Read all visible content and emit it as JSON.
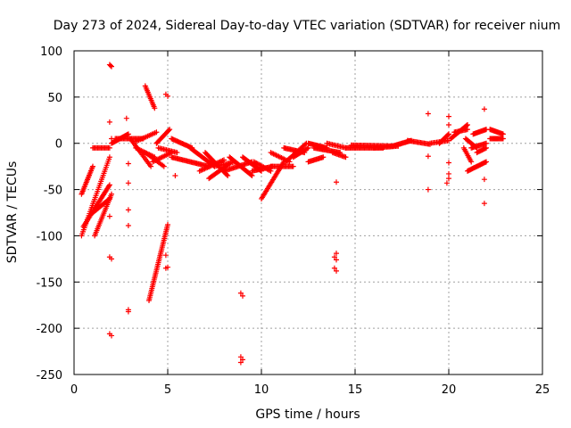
{
  "chart_data": {
    "type": "scatter",
    "title": "Day 273 of 2024, Sidereal Day-to-day VTEC variation (SDTVAR) for receiver nium",
    "xlabel": "GPS time / hours",
    "ylabel": "SDTVAR / TECUs",
    "xlim": [
      0,
      25
    ],
    "ylim": [
      -250,
      100
    ],
    "xticks": [
      0,
      5,
      10,
      15,
      20,
      25
    ],
    "yticks": [
      -250,
      -200,
      -150,
      -100,
      -50,
      0,
      50,
      100
    ],
    "xtick_labels": [
      "0",
      "5",
      "10",
      "15",
      "20",
      "25"
    ],
    "ytick_labels": [
      "-250",
      "-200",
      "-150",
      "-100",
      "-50",
      "0",
      "50",
      "100"
    ],
    "grid": true,
    "marker": "plus",
    "color": "#ff0000",
    "segments": [
      {
        "x0": 0.4,
        "y0": -55,
        "x1": 1.0,
        "y1": -25,
        "n": 20
      },
      {
        "x0": 0.4,
        "y0": -100,
        "x1": 1.9,
        "y1": -15,
        "n": 40
      },
      {
        "x0": 0.5,
        "y0": -90,
        "x1": 1.9,
        "y1": -45,
        "n": 35
      },
      {
        "x0": 1.1,
        "y0": -100,
        "x1": 2.0,
        "y1": -55,
        "n": 25
      },
      {
        "x0": 1.0,
        "y0": -75,
        "x1": 1.9,
        "y1": -60,
        "n": 20
      },
      {
        "x0": 1.0,
        "y0": -5,
        "x1": 1.9,
        "y1": -5,
        "n": 15
      },
      {
        "x0": 2.0,
        "y0": 0,
        "x1": 2.9,
        "y1": 10,
        "n": 20
      },
      {
        "x0": 2.2,
        "y0": 5,
        "x1": 3.7,
        "y1": 5,
        "n": 25
      },
      {
        "x0": 3.0,
        "y0": 5,
        "x1": 4.1,
        "y1": -25,
        "n": 20
      },
      {
        "x0": 3.3,
        "y0": -5,
        "x1": 4.3,
        "y1": -15,
        "n": 15
      },
      {
        "x0": 3.3,
        "y0": 2,
        "x1": 4.4,
        "y1": 12,
        "n": 15
      },
      {
        "x0": 3.8,
        "y0": -10,
        "x1": 4.8,
        "y1": -25,
        "n": 15
      },
      {
        "x0": 4.2,
        "y0": -20,
        "x1": 5.2,
        "y1": -10,
        "n": 15
      },
      {
        "x0": 4.4,
        "y0": 0,
        "x1": 5.1,
        "y1": 15,
        "n": 15
      },
      {
        "x0": 4.5,
        "y0": -5,
        "x1": 5.5,
        "y1": -10,
        "n": 15
      },
      {
        "x0": 3.8,
        "y0": 62,
        "x1": 4.3,
        "y1": 38,
        "n": 15
      },
      {
        "x0": 4.0,
        "y0": -170,
        "x1": 5.0,
        "y1": -88,
        "n": 45
      },
      {
        "x0": 5.2,
        "y0": 5,
        "x1": 6.3,
        "y1": -5,
        "n": 20
      },
      {
        "x0": 5.2,
        "y0": -15,
        "x1": 7.2,
        "y1": -25,
        "n": 35
      },
      {
        "x0": 6.2,
        "y0": -5,
        "x1": 7.5,
        "y1": -25,
        "n": 25
      },
      {
        "x0": 6.7,
        "y0": -30,
        "x1": 8.0,
        "y1": -18,
        "n": 20
      },
      {
        "x0": 7.0,
        "y0": -10,
        "x1": 8.2,
        "y1": -35,
        "n": 25
      },
      {
        "x0": 7.2,
        "y0": -38,
        "x1": 8.3,
        "y1": -22,
        "n": 20
      },
      {
        "x0": 7.5,
        "y0": -25,
        "x1": 8.6,
        "y1": -20,
        "n": 15
      },
      {
        "x0": 8.0,
        "y0": -30,
        "x1": 9.5,
        "y1": -20,
        "n": 25
      },
      {
        "x0": 8.3,
        "y0": -15,
        "x1": 9.5,
        "y1": -35,
        "n": 25
      },
      {
        "x0": 9.0,
        "y0": -15,
        "x1": 10.0,
        "y1": -30,
        "n": 20
      },
      {
        "x0": 9.5,
        "y0": -30,
        "x1": 10.6,
        "y1": -25,
        "n": 20
      },
      {
        "x0": 9.6,
        "y0": -20,
        "x1": 10.5,
        "y1": -30,
        "n": 15
      },
      {
        "x0": 10.0,
        "y0": -60,
        "x1": 11.2,
        "y1": -20,
        "n": 30
      },
      {
        "x0": 10.5,
        "y0": -25,
        "x1": 11.7,
        "y1": -25,
        "n": 20
      },
      {
        "x0": 10.5,
        "y0": -10,
        "x1": 11.5,
        "y1": -20,
        "n": 15
      },
      {
        "x0": 11.2,
        "y0": -5,
        "x1": 12.3,
        "y1": -10,
        "n": 20
      },
      {
        "x0": 11.3,
        "y0": -20,
        "x1": 12.4,
        "y1": 0,
        "n": 20
      },
      {
        "x0": 11.7,
        "y0": -15,
        "x1": 12.5,
        "y1": -5,
        "n": 15
      },
      {
        "x0": 12.5,
        "y0": -20,
        "x1": 13.3,
        "y1": -15,
        "n": 15
      },
      {
        "x0": 12.5,
        "y0": 0,
        "x1": 13.5,
        "y1": -5,
        "n": 20
      },
      {
        "x0": 12.8,
        "y0": -5,
        "x1": 14.2,
        "y1": -10,
        "n": 25
      },
      {
        "x0": 13.5,
        "y0": 0,
        "x1": 14.5,
        "y1": -5,
        "n": 15
      },
      {
        "x0": 13.8,
        "y0": -10,
        "x1": 14.5,
        "y1": -15,
        "n": 12
      },
      {
        "x0": 14.5,
        "y0": -5,
        "x1": 16.5,
        "y1": -5,
        "n": 35
      },
      {
        "x0": 14.8,
        "y0": -2,
        "x1": 17.0,
        "y1": -3,
        "n": 35
      },
      {
        "x0": 16.0,
        "y0": -5,
        "x1": 17.3,
        "y1": -3,
        "n": 20
      },
      {
        "x0": 17.0,
        "y0": -3,
        "x1": 18.0,
        "y1": 3,
        "n": 20
      },
      {
        "x0": 17.8,
        "y0": 3,
        "x1": 19.0,
        "y1": -1,
        "n": 20
      },
      {
        "x0": 19.0,
        "y0": 0,
        "x1": 20.0,
        "y1": 3,
        "n": 15
      },
      {
        "x0": 19.5,
        "y0": 0,
        "x1": 20.0,
        "y1": 10,
        "n": 12
      },
      {
        "x0": 20.1,
        "y0": 5,
        "x1": 21.0,
        "y1": 20,
        "n": 20
      },
      {
        "x0": 20.3,
        "y0": 12,
        "x1": 21.0,
        "y1": 15,
        "n": 12
      },
      {
        "x0": 20.8,
        "y0": -5,
        "x1": 21.2,
        "y1": -20,
        "n": 10
      },
      {
        "x0": 20.9,
        "y0": 5,
        "x1": 21.5,
        "y1": -5,
        "n": 12
      },
      {
        "x0": 21.0,
        "y0": -30,
        "x1": 22.0,
        "y1": -20,
        "n": 20
      },
      {
        "x0": 21.2,
        "y0": -5,
        "x1": 22.0,
        "y1": 0,
        "n": 15
      },
      {
        "x0": 21.3,
        "y0": 10,
        "x1": 22.0,
        "y1": 15,
        "n": 15
      },
      {
        "x0": 21.5,
        "y0": -10,
        "x1": 22.0,
        "y1": -5,
        "n": 10
      },
      {
        "x0": 22.2,
        "y0": 15,
        "x1": 22.9,
        "y1": 10,
        "n": 15
      },
      {
        "x0": 22.2,
        "y0": 5,
        "x1": 22.9,
        "y1": 5,
        "n": 15
      }
    ],
    "points": [
      [
        1.9,
        85
      ],
      [
        2.0,
        83
      ],
      [
        1.95,
        84
      ],
      [
        1.9,
        23
      ],
      [
        2.8,
        27
      ],
      [
        2.0,
        5
      ],
      [
        2.9,
        -22
      ],
      [
        2.9,
        -43
      ],
      [
        2.9,
        -72
      ],
      [
        2.9,
        -89
      ],
      [
        1.9,
        -79
      ],
      [
        1.9,
        -123
      ],
      [
        2.0,
        -125
      ],
      [
        1.9,
        -206
      ],
      [
        2.0,
        -208
      ],
      [
        2.9,
        -180
      ],
      [
        2.9,
        -182
      ],
      [
        4.9,
        53
      ],
      [
        5.0,
        51
      ],
      [
        4.9,
        -121
      ],
      [
        5.0,
        -134
      ],
      [
        4.9,
        -135
      ],
      [
        5.4,
        -35
      ],
      [
        8.9,
        -162
      ],
      [
        9.0,
        -165
      ],
      [
        8.9,
        -231
      ],
      [
        9.0,
        -234
      ],
      [
        8.9,
        -237
      ],
      [
        14.0,
        -42
      ],
      [
        14.0,
        -119
      ],
      [
        13.9,
        -123
      ],
      [
        14.0,
        -126
      ],
      [
        13.9,
        -135
      ],
      [
        14.0,
        -138
      ],
      [
        18.9,
        32
      ],
      [
        18.9,
        -14
      ],
      [
        18.9,
        -50
      ],
      [
        20.0,
        29
      ],
      [
        20.0,
        20
      ],
      [
        20.0,
        -21
      ],
      [
        20.0,
        -33
      ],
      [
        20.0,
        -38
      ],
      [
        19.9,
        -43
      ],
      [
        21.9,
        37
      ],
      [
        21.9,
        -39
      ],
      [
        21.9,
        -65
      ]
    ]
  }
}
